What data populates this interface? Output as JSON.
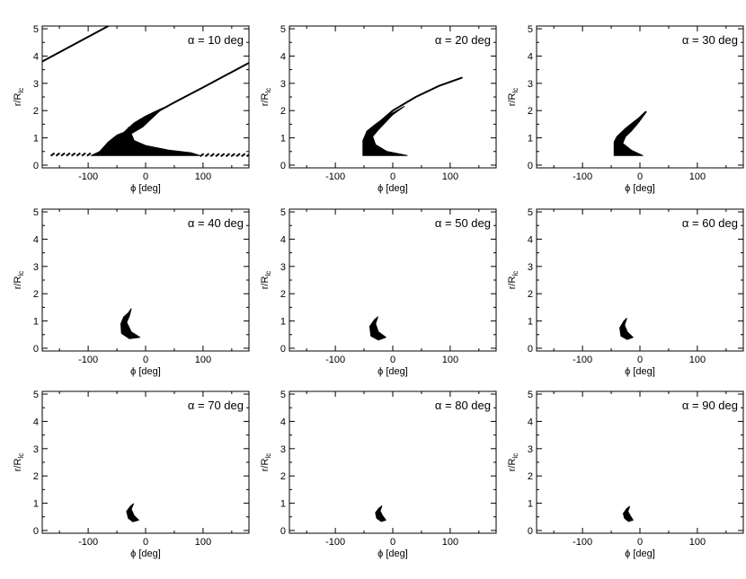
{
  "chart_data": {
    "type": "scatter",
    "layout": "3x3 grid",
    "shared": {
      "xlabel": "ϕ [deg]",
      "ylabel_main": "r/R",
      "ylabel_sub": "lc",
      "xlim": [
        -180,
        180
      ],
      "ylim": [
        -0.1,
        5.1
      ],
      "xticks": [
        -100,
        0,
        100
      ],
      "yticks": [
        0,
        1,
        2,
        3,
        4,
        5
      ],
      "grid": false,
      "color": "#000000"
    },
    "panels": [
      {
        "label": "α = 10 deg",
        "lines": [
          [
            [
              -180,
              3.8
            ],
            [
              -65,
              5.1
            ]
          ],
          [
            [
              -30,
              1.35
            ],
            [
              0,
              1.72
            ],
            [
              50,
              2.3
            ],
            [
              100,
              2.85
            ],
            [
              180,
              3.75
            ]
          ]
        ],
        "regions": [
          [
            [
              -95,
              0.35
            ],
            [
              -80,
              0.5
            ],
            [
              -65,
              0.85
            ],
            [
              -50,
              1.1
            ],
            [
              -38,
              1.2
            ],
            [
              -20,
              1.55
            ],
            [
              0,
              1.8
            ],
            [
              15,
              1.95
            ],
            [
              30,
              2.1
            ],
            [
              -5,
              1.4
            ],
            [
              -25,
              1.15
            ],
            [
              -20,
              0.9
            ],
            [
              0,
              0.72
            ],
            [
              40,
              0.55
            ],
            [
              80,
              0.45
            ],
            [
              95,
              0.35
            ]
          ]
        ],
        "dashes": [
          [
            -165,
            -95,
            0.38
          ],
          [
            95,
            180,
            0.36
          ]
        ]
      },
      {
        "label": "α = 20 deg",
        "lines": [
          [
            [
              -30,
              1.45
            ],
            [
              0,
              2.0
            ],
            [
              40,
              2.5
            ],
            [
              80,
              2.9
            ],
            [
              120,
              3.2
            ]
          ]
        ],
        "regions": [
          [
            [
              -52,
              0.35
            ],
            [
              -52,
              0.9
            ],
            [
              -45,
              1.25
            ],
            [
              -30,
              1.5
            ],
            [
              -10,
              1.8
            ],
            [
              20,
              2.15
            ],
            [
              0,
              1.85
            ],
            [
              -25,
              1.3
            ],
            [
              -35,
              1.05
            ],
            [
              -30,
              0.75
            ],
            [
              -10,
              0.5
            ],
            [
              25,
              0.35
            ]
          ]
        ],
        "dashes": []
      },
      {
        "label": "α = 30 deg",
        "lines": [
          [
            [
              -20,
              1.35
            ],
            [
              -5,
              1.65
            ],
            [
              10,
              1.95
            ]
          ]
        ],
        "regions": [
          [
            [
              -45,
              0.35
            ],
            [
              -45,
              0.85
            ],
            [
              -40,
              1.05
            ],
            [
              -25,
              1.35
            ],
            [
              -10,
              1.6
            ],
            [
              10,
              1.92
            ],
            [
              -3,
              1.55
            ],
            [
              -15,
              1.25
            ],
            [
              -25,
              1.05
            ],
            [
              -30,
              0.8
            ],
            [
              -15,
              0.55
            ],
            [
              5,
              0.35
            ]
          ]
        ],
        "dashes": []
      },
      {
        "label": "α = 40 deg",
        "lines": [],
        "regions": [
          [
            [
              -42,
              0.55
            ],
            [
              -43,
              0.9
            ],
            [
              -38,
              1.15
            ],
            [
              -30,
              1.3
            ],
            [
              -25,
              1.45
            ],
            [
              -28,
              1.2
            ],
            [
              -33,
              0.95
            ],
            [
              -25,
              0.6
            ],
            [
              -10,
              0.4
            ],
            [
              -28,
              0.35
            ]
          ]
        ],
        "dashes": []
      },
      {
        "label": "α = 50 deg",
        "lines": [],
        "regions": [
          [
            [
              -38,
              0.45
            ],
            [
              -40,
              0.8
            ],
            [
              -32,
              1.05
            ],
            [
              -26,
              1.15
            ],
            [
              -30,
              0.9
            ],
            [
              -25,
              0.6
            ],
            [
              -12,
              0.4
            ],
            [
              -25,
              0.3
            ]
          ]
        ],
        "dashes": []
      },
      {
        "label": "α = 60 deg",
        "lines": [],
        "regions": [
          [
            [
              -33,
              0.45
            ],
            [
              -35,
              0.75
            ],
            [
              -28,
              1.0
            ],
            [
              -23,
              1.1
            ],
            [
              -27,
              0.85
            ],
            [
              -22,
              0.6
            ],
            [
              -12,
              0.4
            ],
            [
              -22,
              0.32
            ]
          ]
        ],
        "dashes": []
      },
      {
        "label": "α = 70 deg",
        "lines": [],
        "regions": [
          [
            [
              -30,
              0.45
            ],
            [
              -33,
              0.7
            ],
            [
              -26,
              0.9
            ],
            [
              -21,
              0.98
            ],
            [
              -25,
              0.78
            ],
            [
              -20,
              0.55
            ],
            [
              -12,
              0.38
            ],
            [
              -22,
              0.32
            ]
          ]
        ],
        "dashes": []
      },
      {
        "label": "α = 80 deg",
        "lines": [],
        "regions": [
          [
            [
              -28,
              0.45
            ],
            [
              -30,
              0.65
            ],
            [
              -24,
              0.82
            ],
            [
              -19,
              0.9
            ],
            [
              -22,
              0.72
            ],
            [
              -18,
              0.55
            ],
            [
              -12,
              0.38
            ],
            [
              -20,
              0.33
            ]
          ]
        ],
        "dashes": []
      },
      {
        "label": "α = 90 deg",
        "lines": [],
        "regions": [
          [
            [
              -27,
              0.45
            ],
            [
              -29,
              0.62
            ],
            [
              -23,
              0.8
            ],
            [
              -18,
              0.88
            ],
            [
              -21,
              0.7
            ],
            [
              -17,
              0.55
            ],
            [
              -12,
              0.38
            ],
            [
              -20,
              0.33
            ]
          ]
        ],
        "dashes": []
      }
    ]
  }
}
